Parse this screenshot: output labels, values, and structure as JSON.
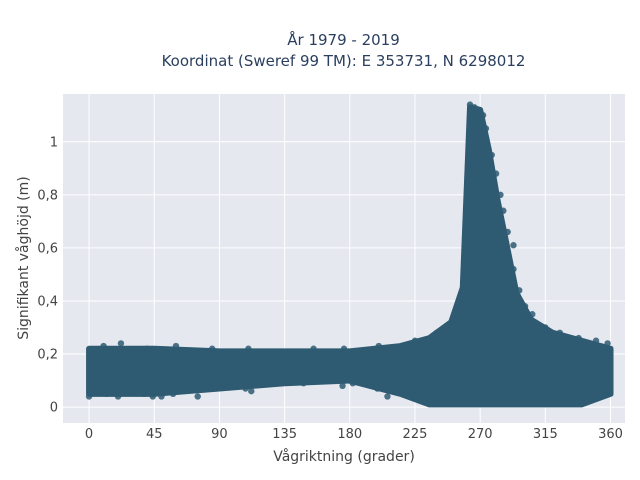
{
  "chart_data": {
    "type": "scatter",
    "title_line1": "År 1979 - 2019",
    "title_line2": "Koordinat (Sweref 99 TM): E 353731, N 6298012",
    "xlabel": "Vågriktning (grader)",
    "ylabel": "Signifikant våghöjd (m)",
    "xlim": [
      -18,
      370
    ],
    "ylim": [
      -0.06,
      1.18
    ],
    "x_ticks": [
      0,
      45,
      90,
      135,
      180,
      225,
      270,
      315,
      360
    ],
    "x_tick_labels": [
      "0",
      "45",
      "90",
      "135",
      "180",
      "225",
      "270",
      "315",
      "360"
    ],
    "y_ticks": [
      0,
      0.2,
      0.4,
      0.6,
      0.8,
      1
    ],
    "y_tick_labels": [
      "0",
      "0,2",
      "0,4",
      "0,6",
      "0,8",
      "1"
    ],
    "grid": true,
    "marker_color": "#2e5a72",
    "background": "#e5e8ef",
    "envelope": [
      {
        "x": 0,
        "lo": 0.05,
        "hi": 0.22
      },
      {
        "x": 45,
        "lo": 0.05,
        "hi": 0.22
      },
      {
        "x": 90,
        "lo": 0.07,
        "hi": 0.21
      },
      {
        "x": 135,
        "lo": 0.09,
        "hi": 0.21
      },
      {
        "x": 180,
        "lo": 0.1,
        "hi": 0.21
      },
      {
        "x": 215,
        "lo": 0.05,
        "hi": 0.23
      },
      {
        "x": 235,
        "lo": 0.01,
        "hi": 0.26
      },
      {
        "x": 250,
        "lo": 0.01,
        "hi": 0.32
      },
      {
        "x": 258,
        "lo": 0.01,
        "hi": 0.45
      },
      {
        "x": 263,
        "lo": 0.01,
        "hi": 1.13
      },
      {
        "x": 270,
        "lo": 0.01,
        "hi": 1.12
      },
      {
        "x": 276,
        "lo": 0.01,
        "hi": 0.97
      },
      {
        "x": 282,
        "lo": 0.01,
        "hi": 0.78
      },
      {
        "x": 288,
        "lo": 0.01,
        "hi": 0.62
      },
      {
        "x": 295,
        "lo": 0.01,
        "hi": 0.43
      },
      {
        "x": 305,
        "lo": 0.01,
        "hi": 0.33
      },
      {
        "x": 320,
        "lo": 0.01,
        "hi": 0.28
      },
      {
        "x": 340,
        "lo": 0.01,
        "hi": 0.25
      },
      {
        "x": 360,
        "lo": 0.05,
        "hi": 0.22
      }
    ],
    "points": [
      [
        0,
        0.04
      ],
      [
        5,
        0.06
      ],
      [
        12,
        0.05
      ],
      [
        20,
        0.04
      ],
      [
        25,
        0.06
      ],
      [
        38,
        0.05
      ],
      [
        44,
        0.04
      ],
      [
        50,
        0.04
      ],
      [
        58,
        0.05
      ],
      [
        75,
        0.04
      ],
      [
        95,
        0.09
      ],
      [
        108,
        0.07
      ],
      [
        112,
        0.06
      ],
      [
        128,
        0.09
      ],
      [
        140,
        0.1
      ],
      [
        148,
        0.09
      ],
      [
        157,
        0.11
      ],
      [
        175,
        0.08
      ],
      [
        182,
        0.09
      ],
      [
        199,
        0.07
      ],
      [
        206,
        0.04
      ],
      [
        212,
        0.06
      ],
      [
        10,
        0.23
      ],
      [
        22,
        0.24
      ],
      [
        40,
        0.22
      ],
      [
        60,
        0.23
      ],
      [
        85,
        0.22
      ],
      [
        110,
        0.22
      ],
      [
        155,
        0.22
      ],
      [
        176,
        0.22
      ],
      [
        200,
        0.23
      ],
      [
        225,
        0.25
      ],
      [
        240,
        0.28
      ],
      [
        248,
        0.31
      ],
      [
        263,
        1.14
      ],
      [
        266,
        1.13
      ],
      [
        269,
        1.12
      ],
      [
        272,
        1.1
      ],
      [
        274,
        1.05
      ],
      [
        278,
        0.95
      ],
      [
        281,
        0.88
      ],
      [
        284,
        0.8
      ],
      [
        286,
        0.74
      ],
      [
        289,
        0.66
      ],
      [
        293,
        0.61
      ],
      [
        293,
        0.52
      ],
      [
        297,
        0.44
      ],
      [
        301,
        0.38
      ],
      [
        306,
        0.35
      ],
      [
        315,
        0.3
      ],
      [
        325,
        0.28
      ],
      [
        338,
        0.26
      ],
      [
        350,
        0.25
      ],
      [
        358,
        0.24
      ],
      [
        359,
        0.05
      ],
      [
        345,
        0.04
      ],
      [
        330,
        0.02
      ],
      [
        300,
        0.02
      ]
    ]
  }
}
